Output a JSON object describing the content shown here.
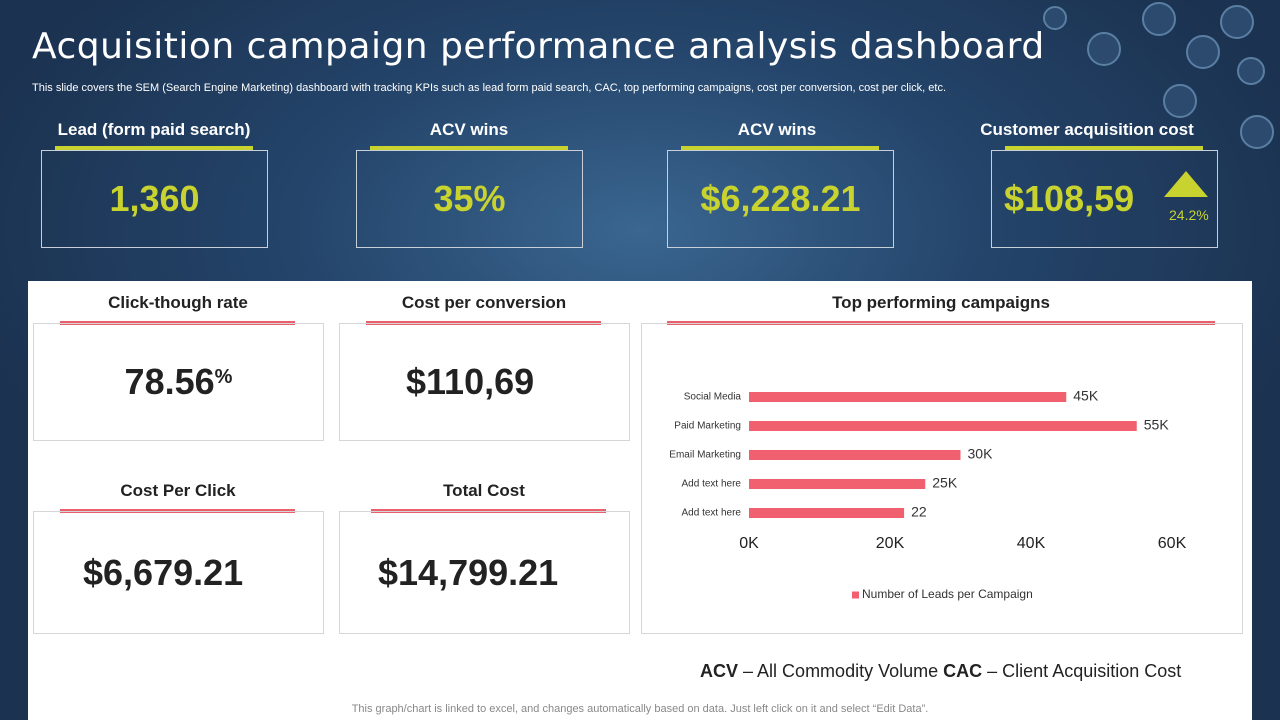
{
  "header": {
    "title": "Acquisition campaign performance analysis dashboard",
    "subtitle": "This slide covers the SEM (Search Engine Marketing) dashboard with tracking KPIs such as lead form paid search, CAC, top performing campaigns, cost per conversion, cost per click, etc."
  },
  "kpis": [
    {
      "label": "Lead (form paid search)",
      "value": "1,360"
    },
    {
      "label": "ACV  wins",
      "value": "35%"
    },
    {
      "label": "ACV  wins",
      "value": "$6,228.21"
    },
    {
      "label": "Customer acquisition cost",
      "value": "$108,59",
      "change": "24.2%"
    }
  ],
  "cards": [
    {
      "label": "Click-though rate",
      "value": "78.56",
      "unit": "%"
    },
    {
      "label": "Cost per conversion",
      "value": "$110,69"
    },
    {
      "label": "Cost Per Click",
      "value": "$6,679.21"
    },
    {
      "label": "Total Cost",
      "value": "$14,799.21"
    }
  ],
  "chart_data": {
    "type": "hbar",
    "title": "Top performing campaigns",
    "categories": [
      "Social Media",
      "Paid Marketing",
      "Email Marketing",
      "Add text here",
      "Add text here"
    ],
    "series": [
      {
        "name": "Number of Leads per Campaign",
        "color": "#f0606e",
        "values": [
          45,
          55,
          30,
          25,
          22
        ],
        "value_labels": [
          "45K",
          "55K",
          "30K",
          "25K",
          "22"
        ]
      }
    ],
    "xlim": [
      0,
      60
    ],
    "xticks": [
      {
        "value": 0,
        "label": "0K"
      },
      {
        "value": 20,
        "label": "20K"
      },
      {
        "value": 40,
        "label": "40K"
      },
      {
        "value": 60,
        "label": "60K"
      }
    ],
    "legend": "bottom"
  },
  "glossary": [
    {
      "abbr": "ACV",
      "definition": "– All Commodity Volume"
    },
    {
      "abbr": "CAC",
      "definition": "– Client Acquisition Cost"
    }
  ],
  "footnote": "This graph/chart is linked to excel,  and changes automatically based on data. Just left click on it and select “Edit Data”."
}
